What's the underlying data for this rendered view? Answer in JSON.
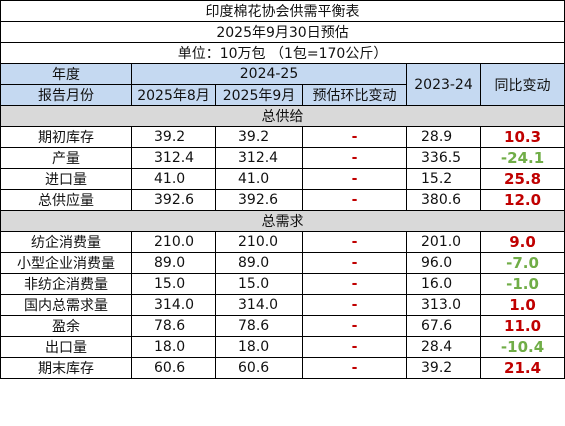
{
  "title": "印度棉花协会供需平衡表",
  "subtitle": "2025年9月30日预估",
  "unit": "单位：10万包 （1包=170公斤）",
  "header": {
    "year_label": "年度",
    "season_current": "2024-25",
    "season_prev": "2023-24",
    "yoy_label": "同比变动",
    "report_month_label": "报告月份",
    "col_aug": "2025年8月",
    "col_sep": "2025年9月",
    "col_mom": "预估环比变动"
  },
  "colors": {
    "header_bg": "#c5d9f1",
    "section_bg": "#d9d9d9",
    "positive": "#c00000",
    "negative": "#70ad47"
  },
  "sections": [
    {
      "title": "总供给",
      "rows": [
        {
          "item": "期初库存",
          "aug": "39.2",
          "sep": "39.2",
          "mom": "-",
          "prev": "28.9",
          "yoy": "10.3",
          "sign": "pos"
        },
        {
          "item": "产量",
          "aug": "312.4",
          "sep": "312.4",
          "mom": "-",
          "prev": "336.5",
          "yoy": "-24.1",
          "sign": "neg"
        },
        {
          "item": "进口量",
          "aug": "41.0",
          "sep": "41.0",
          "mom": "-",
          "prev": "15.2",
          "yoy": "25.8",
          "sign": "pos"
        },
        {
          "item": "总供应量",
          "aug": "392.6",
          "sep": "392.6",
          "mom": "-",
          "prev": "380.6",
          "yoy": "12.0",
          "sign": "pos"
        }
      ]
    },
    {
      "title": "总需求",
      "rows": [
        {
          "item": "纺企消费量",
          "aug": "210.0",
          "sep": "210.0",
          "mom": "-",
          "prev": "201.0",
          "yoy": "9.0",
          "sign": "pos"
        },
        {
          "item": "小型企业消费量",
          "aug": "89.0",
          "sep": "89.0",
          "mom": "-",
          "prev": "96.0",
          "yoy": "-7.0",
          "sign": "neg"
        },
        {
          "item": "非纺企消费量",
          "aug": "15.0",
          "sep": "15.0",
          "mom": "-",
          "prev": "16.0",
          "yoy": "-1.0",
          "sign": "neg"
        },
        {
          "item": "国内总需求量",
          "aug": "314.0",
          "sep": "314.0",
          "mom": "-",
          "prev": "313.0",
          "yoy": "1.0",
          "sign": "pos"
        },
        {
          "item": "盈余",
          "aug": "78.6",
          "sep": "78.6",
          "mom": "-",
          "prev": "67.6",
          "yoy": "11.0",
          "sign": "pos"
        },
        {
          "item": "出口量",
          "aug": "18.0",
          "sep": "18.0",
          "mom": "-",
          "prev": "28.4",
          "yoy": "-10.4",
          "sign": "neg"
        },
        {
          "item": "期末库存",
          "aug": "60.6",
          "sep": "60.6",
          "mom": "-",
          "prev": "39.2",
          "yoy": "21.4",
          "sign": "pos"
        }
      ]
    }
  ]
}
